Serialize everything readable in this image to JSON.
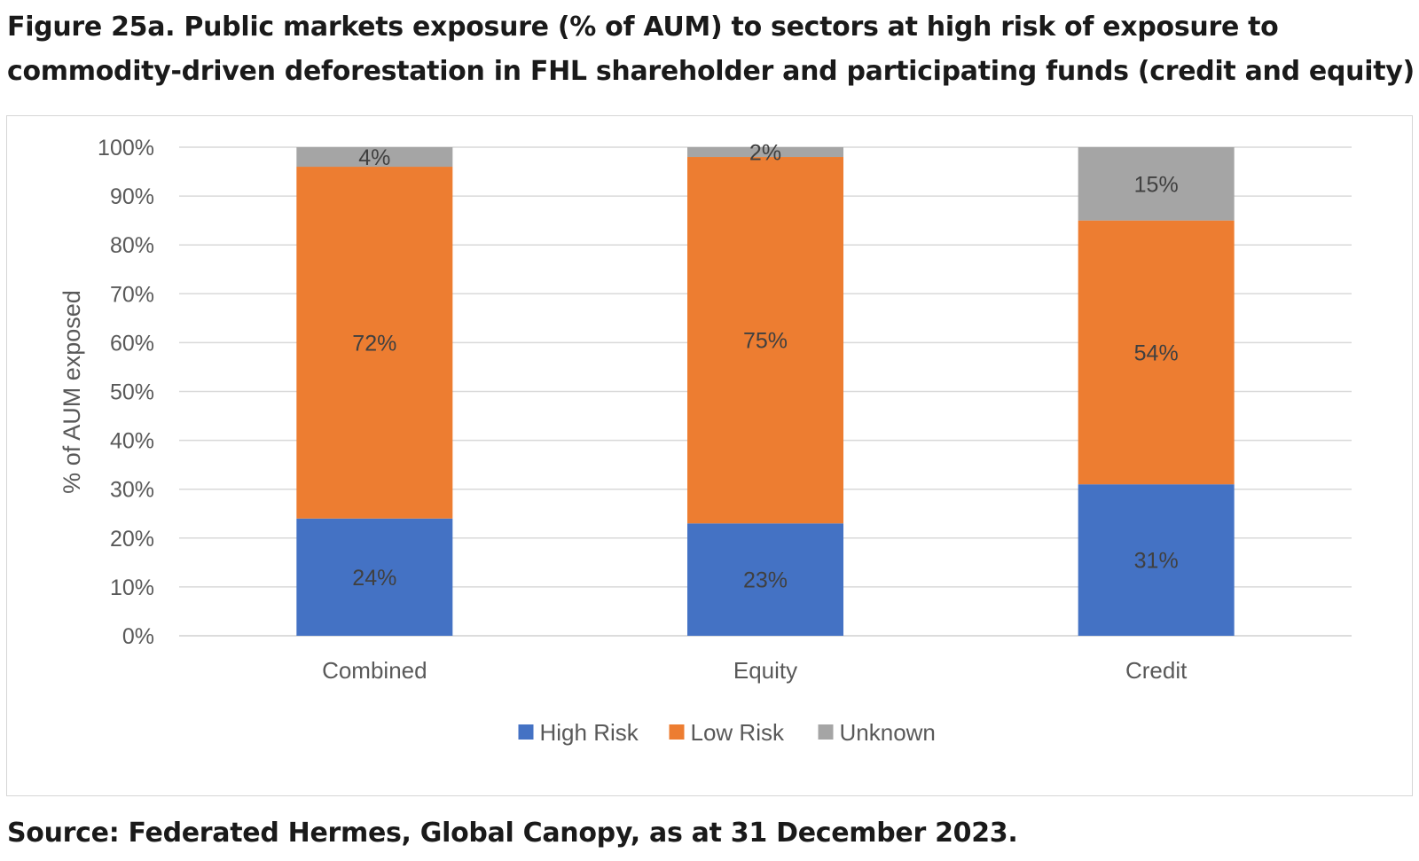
{
  "title": "Figure 25a. Public markets exposure (% of AUM) to sectors at high risk of exposure to commodity-driven deforestation in FHL shareholder and participating funds (credit and equity)",
  "source": "Source: Federated Hermes, Global Canopy, as at 31 December 2023.",
  "chart_data": {
    "type": "bar",
    "stacked": true,
    "title": "Figure 25a. Public markets exposure (% of AUM) to sectors at high risk of exposure to commodity-driven deforestation in FHL shareholder and participating funds (credit and equity)",
    "xlabel": "",
    "ylabel": "% of AUM exposed",
    "ylim": [
      0,
      100
    ],
    "yticks": [
      "0%",
      "10%",
      "20%",
      "30%",
      "40%",
      "50%",
      "60%",
      "70%",
      "80%",
      "90%",
      "100%"
    ],
    "grid": true,
    "legend_position": "bottom",
    "categories": [
      "Combined",
      "Equity",
      "Credit"
    ],
    "series": [
      {
        "name": "High Risk",
        "color": "#4472C4",
        "values": [
          24,
          23,
          31
        ],
        "labels": [
          "24%",
          "23%",
          "31%"
        ]
      },
      {
        "name": "Low Risk",
        "color": "#ED7D31",
        "values": [
          72,
          75,
          54
        ],
        "labels": [
          "72%",
          "75%",
          "54%"
        ]
      },
      {
        "name": "Unknown",
        "color": "#A5A5A5",
        "values": [
          4,
          2,
          15
        ],
        "labels": [
          "4%",
          "2%",
          "15%"
        ]
      }
    ]
  }
}
